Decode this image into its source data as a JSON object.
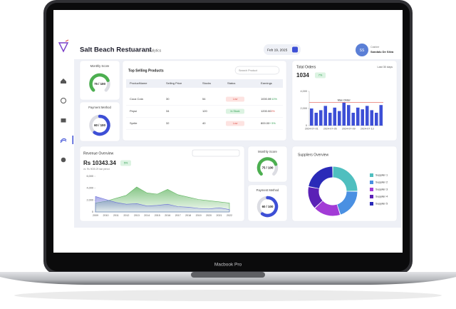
{
  "header": {
    "title": "Salt Beach Restuarant",
    "subtitle": "/ analytics",
    "date": "Feb 19, 2025",
    "user_initials": "SS",
    "user_role": "Cashier",
    "user_name": "Sandalu De Silva"
  },
  "score_cards": [
    {
      "title": "Monthly Score",
      "score": 75,
      "max": 100,
      "label": "75 / 100",
      "color": "#4caf50",
      "shape": "horseshoe"
    },
    {
      "title": "Payment Method",
      "score": 60,
      "max": 100,
      "label": "60 / 100",
      "color": "#3d4fd6",
      "shape": "ring"
    },
    {
      "title": "Monthly Score",
      "score": 75,
      "max": 100,
      "label": "75 / 100",
      "color": "#4caf50",
      "shape": "horseshoe"
    },
    {
      "title": "Payment Method",
      "score": 60,
      "max": 100,
      "label": "60 / 100",
      "color": "#3d4fd6",
      "shape": "ring"
    }
  ],
  "products": {
    "title": "Top Selling Products",
    "search_placeholder": "Search Product",
    "columns": [
      "ProductName",
      "Selling Price",
      "Stocks",
      "Status",
      "Earnings"
    ],
    "rows": [
      {
        "name": "Coca Cola",
        "price": "30",
        "stock": "54",
        "status": "Low",
        "status_color": "#e0574f",
        "status_bg": "#fde3e1",
        "earnings": "1000.00",
        "change": "+ 10%",
        "change_color": "#2e9e4f"
      },
      {
        "name": "Pepsi",
        "price": "34",
        "stock": "120",
        "status": "In Stock",
        "status_color": "#2e9e4f",
        "status_bg": "#dcf3e2",
        "earnings": "1200.00",
        "change": "- 0%",
        "change_color": "#e0574f"
      },
      {
        "name": "Sprite",
        "price": "32",
        "stock": "40",
        "status": "Low",
        "status_color": "#e0574f",
        "status_bg": "#fde3e1",
        "earnings": "800.00",
        "change": "+ 5%",
        "change_color": "#2e9e4f"
      }
    ]
  },
  "chart_data": [
    {
      "type": "bar",
      "title": "Total Orders",
      "value": 1034,
      "badge": "7%",
      "period": "Last 30 days",
      "categories": [
        "2024-07-01",
        null,
        null,
        null,
        "2024-07-05",
        null,
        null,
        null,
        "2024-07-09",
        null,
        null,
        null,
        "2024-07-13",
        null,
        null,
        null
      ],
      "values": [
        2000,
        1500,
        1800,
        2300,
        1500,
        2100,
        1700,
        2700,
        2400,
        1500,
        2100,
        1900,
        2300,
        1800,
        1500,
        2400
      ],
      "color": "#3d4fd6",
      "ylim": [
        0,
        4000
      ],
      "yticks": [
        0,
        {
          "value": 2000,
          "label": "2,000"
        },
        {
          "value": 4000,
          "label": "4,000"
        }
      ],
      "annotation": "Max Order",
      "annotation_color": "#e0574f"
    },
    {
      "type": "area",
      "title": "Revenue Overview",
      "value": "Rs 10343.34",
      "badge": "5%",
      "note": "vs. Rs 9035.29 last period",
      "categories": [
        "2009",
        "2010",
        "2011",
        "2012",
        "2013",
        "2014",
        "2015",
        "2016",
        "2017",
        "2018",
        "2019",
        "2020",
        "2021",
        "2022"
      ],
      "series": [
        {
          "color": "#5db35d",
          "values": [
            1500,
            1800,
            2300,
            2800,
            4200,
            3200,
            3000,
            3800,
            2900,
            2500,
            2100,
            1900,
            1700,
            1500
          ]
        },
        {
          "color": "#6b6fd8",
          "values": [
            2600,
            2100,
            1600,
            1300,
            1400,
            1000,
            1100,
            1300,
            900,
            800,
            600,
            500,
            700,
            400
          ]
        }
      ],
      "ylim": [
        0,
        6000
      ],
      "yticks": [
        0,
        {
          "value": 2000,
          "label": "2,000"
        },
        {
          "value": 4000,
          "label": "4,000"
        },
        {
          "value": 6000,
          "label": "6,000"
        }
      ]
    },
    {
      "type": "donut",
      "title": "Suppliers Overview",
      "categories": [
        "Supplier 1",
        "Supplier 2",
        "Supplier 3",
        "Supplier 4",
        "Supplier 5"
      ],
      "values": [
        25,
        20,
        18,
        15,
        22
      ],
      "colors": [
        "#4fbfbf",
        "#4a90e2",
        "#a23bd6",
        "#5b21b6",
        "#2a2ab8"
      ]
    }
  ],
  "device_label": "Macbook Pro"
}
